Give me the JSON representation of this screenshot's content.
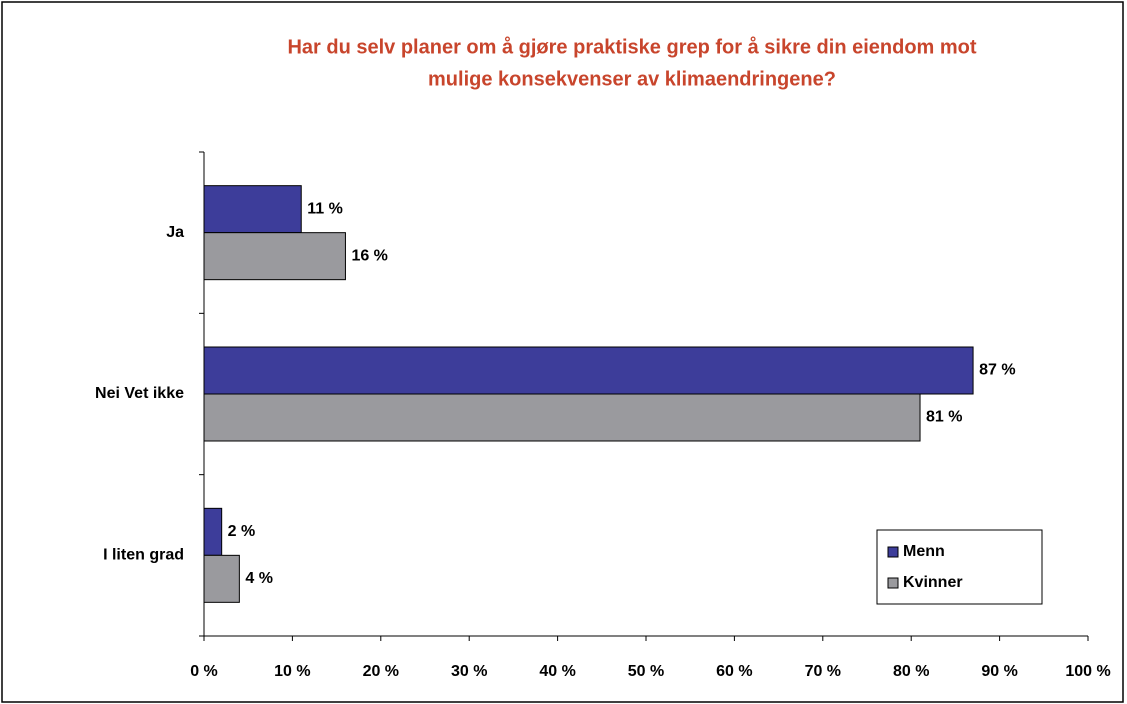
{
  "chart_data": {
    "type": "hbar",
    "title": [
      "Har du selv planer om å gjøre praktiske grep for å sikre din eiendom mot",
      "mulige konsekvenser av klimaendringene?"
    ],
    "categories": [
      "Ja",
      "Nei Vet ikke",
      "I liten grad"
    ],
    "series": [
      {
        "name": "Menn",
        "color": "#3d3d9a",
        "values": [
          11,
          87,
          2
        ],
        "value_labels": [
          "11 %",
          "87 %",
          "2 %"
        ]
      },
      {
        "name": "Kvinner",
        "color": "#9a9a9e",
        "values": [
          16,
          81,
          4
        ],
        "value_labels": [
          "16 %",
          "81 %",
          "4 %"
        ]
      }
    ],
    "xlim": [
      0,
      100
    ],
    "xticks": [
      {
        "value": 0,
        "label": "0 %"
      },
      {
        "value": 10,
        "label": "10 %"
      },
      {
        "value": 20,
        "label": "20 %"
      },
      {
        "value": 30,
        "label": "30 %"
      },
      {
        "value": 40,
        "label": "40 %"
      },
      {
        "value": 50,
        "label": "50 %"
      },
      {
        "value": 60,
        "label": "60 %"
      },
      {
        "value": 70,
        "label": "70 %"
      },
      {
        "value": 80,
        "label": "80 %"
      },
      {
        "value": 90,
        "label": "90 %"
      },
      {
        "value": 100,
        "label": "100 %"
      }
    ],
    "legend": "lower right"
  }
}
